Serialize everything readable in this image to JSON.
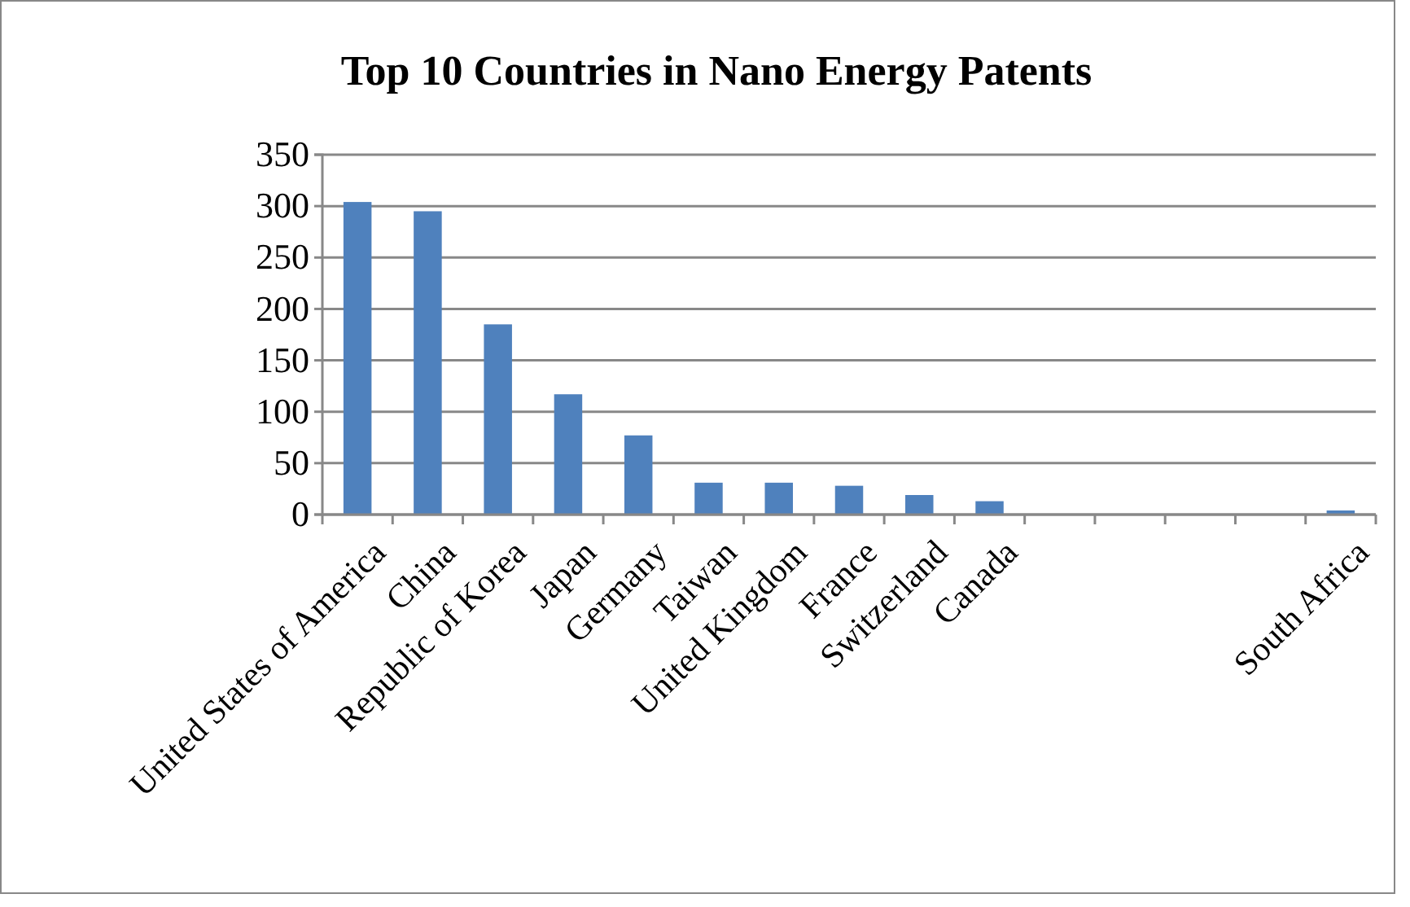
{
  "chart_data": {
    "type": "bar",
    "title": "Top 10 Countries in Nano Energy Patents",
    "categories": [
      "United States of America",
      "China",
      "Republic of Korea",
      "Japan",
      "Germany",
      "Taiwan",
      "United Kingdom",
      "France",
      "Switzerland",
      "Canada",
      null,
      null,
      null,
      null,
      "South Africa"
    ],
    "values": [
      304,
      295,
      185,
      117,
      77,
      31,
      31,
      28,
      19,
      13,
      null,
      null,
      null,
      null,
      4
    ],
    "color": "#4f81bd",
    "ylim": [
      0,
      350
    ],
    "yticks": [
      0,
      50,
      100,
      150,
      200,
      250,
      300,
      350
    ],
    "grid": "y"
  }
}
